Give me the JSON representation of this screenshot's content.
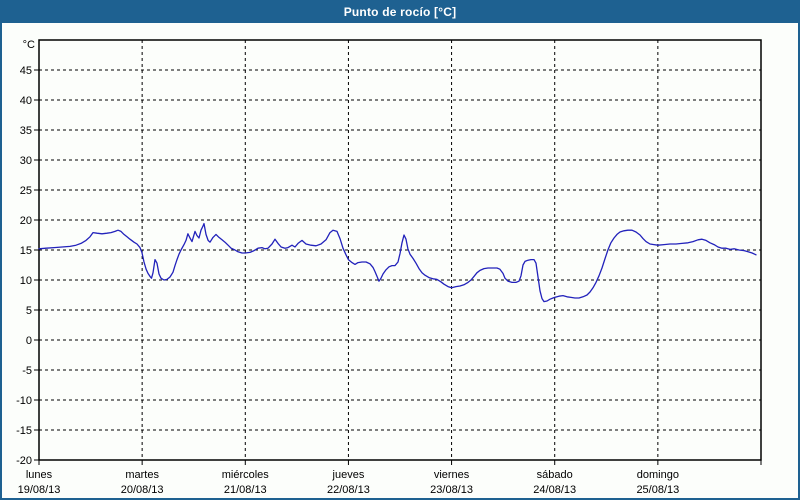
{
  "window": {
    "title": "Punto de rocío [°C]"
  },
  "colors": {
    "titlebar_bg": "#1e6191",
    "window_border": "#1e6191",
    "background": "#fcfefb",
    "line": "#2222bb",
    "grid": "#000000",
    "axis": "#000000",
    "text": "#000000",
    "title_text": "#ffffff"
  },
  "chart_data": {
    "type": "line",
    "title": "Punto de rocío [°C]",
    "unit_label": "°C",
    "ylabel": "°C",
    "xlabel": "",
    "ylim": [
      -20,
      50
    ],
    "yticks": [
      45,
      40,
      35,
      30,
      25,
      20,
      15,
      10,
      5,
      0,
      -5,
      -10,
      -15,
      -20
    ],
    "grid": "dashed",
    "legend": "none",
    "x_axis_days": [
      {
        "name": "lunes",
        "date": "19/08/13"
      },
      {
        "name": "martes",
        "date": "20/08/13"
      },
      {
        "name": "miércoles",
        "date": "21/08/13"
      },
      {
        "name": "jueves",
        "date": "22/08/13"
      },
      {
        "name": "viernes",
        "date": "23/08/13"
      },
      {
        "name": "sábado",
        "date": "24/08/13"
      },
      {
        "name": "domingo",
        "date": "25/08/13"
      }
    ],
    "series": [
      {
        "name": "punto de rocío",
        "color": "#2222bb",
        "x_unit": "days from 19/08/13 00:00",
        "y_unit": "°C",
        "points": [
          [
            0.0,
            15.2
          ],
          [
            0.068,
            15.3
          ],
          [
            0.145,
            15.4
          ],
          [
            0.223,
            15.5
          ],
          [
            0.301,
            15.6
          ],
          [
            0.359,
            15.8
          ],
          [
            0.407,
            16.1
          ],
          [
            0.456,
            16.6
          ],
          [
            0.494,
            17.2
          ],
          [
            0.524,
            17.9
          ],
          [
            0.562,
            17.8
          ],
          [
            0.611,
            17.7
          ],
          [
            0.659,
            17.8
          ],
          [
            0.698,
            17.9
          ],
          [
            0.737,
            18.1
          ],
          [
            0.766,
            18.3
          ],
          [
            0.795,
            18.1
          ],
          [
            0.824,
            17.6
          ],
          [
            0.853,
            17.2
          ],
          [
            0.882,
            16.8
          ],
          [
            0.921,
            16.3
          ],
          [
            0.95,
            16.0
          ],
          [
            0.979,
            15.4
          ],
          [
            0.998,
            14.6
          ],
          [
            1.018,
            13.0
          ],
          [
            1.038,
            11.8
          ],
          [
            1.057,
            11.1
          ],
          [
            1.076,
            10.6
          ],
          [
            1.091,
            10.3
          ],
          [
            1.105,
            11.2
          ],
          [
            1.125,
            13.4
          ],
          [
            1.144,
            12.8
          ],
          [
            1.163,
            11.0
          ],
          [
            1.183,
            10.3
          ],
          [
            1.212,
            10.0
          ],
          [
            1.241,
            10.1
          ],
          [
            1.27,
            10.5
          ],
          [
            1.299,
            11.3
          ],
          [
            1.319,
            12.4
          ],
          [
            1.338,
            13.4
          ],
          [
            1.357,
            14.3
          ],
          [
            1.377,
            15.0
          ],
          [
            1.406,
            15.9
          ],
          [
            1.425,
            16.6
          ],
          [
            1.444,
            17.7
          ],
          [
            1.464,
            17.0
          ],
          [
            1.483,
            16.4
          ],
          [
            1.512,
            18.1
          ],
          [
            1.532,
            17.4
          ],
          [
            1.551,
            17.0
          ],
          [
            1.571,
            18.3
          ],
          [
            1.59,
            19.0
          ],
          [
            1.6,
            19.4
          ],
          [
            1.619,
            17.6
          ],
          [
            1.639,
            16.6
          ],
          [
            1.658,
            16.3
          ],
          [
            1.687,
            17.1
          ],
          [
            1.716,
            17.6
          ],
          [
            1.745,
            17.1
          ],
          [
            1.774,
            16.7
          ],
          [
            1.803,
            16.3
          ],
          [
            1.833,
            15.8
          ],
          [
            1.862,
            15.3
          ],
          [
            1.9,
            15.0
          ],
          [
            1.929,
            14.7
          ],
          [
            1.968,
            14.5
          ],
          [
            2.0,
            14.5
          ],
          [
            2.046,
            14.6
          ],
          [
            2.085,
            14.9
          ],
          [
            2.123,
            15.3
          ],
          [
            2.162,
            15.4
          ],
          [
            2.191,
            15.2
          ],
          [
            2.22,
            15.3
          ],
          [
            2.259,
            16.0
          ],
          [
            2.288,
            16.8
          ],
          [
            2.317,
            16.1
          ],
          [
            2.347,
            15.5
          ],
          [
            2.385,
            15.3
          ],
          [
            2.414,
            15.4
          ],
          [
            2.453,
            15.8
          ],
          [
            2.482,
            15.5
          ],
          [
            2.511,
            16.1
          ],
          [
            2.55,
            16.6
          ],
          [
            2.589,
            16.0
          ],
          [
            2.637,
            15.8
          ],
          [
            2.686,
            15.7
          ],
          [
            2.734,
            16.0
          ],
          [
            2.783,
            16.7
          ],
          [
            2.821,
            17.9
          ],
          [
            2.85,
            18.3
          ],
          [
            2.889,
            18.1
          ],
          [
            2.918,
            16.9
          ],
          [
            2.947,
            15.3
          ],
          [
            2.976,
            14.2
          ],
          [
            3.0,
            13.4
          ],
          [
            3.035,
            12.9
          ],
          [
            3.064,
            12.6
          ],
          [
            3.093,
            12.9
          ],
          [
            3.132,
            13.0
          ],
          [
            3.171,
            13.0
          ],
          [
            3.209,
            12.7
          ],
          [
            3.238,
            12.1
          ],
          [
            3.258,
            11.4
          ],
          [
            3.277,
            10.6
          ],
          [
            3.296,
            9.8
          ],
          [
            3.316,
            10.3
          ],
          [
            3.335,
            11.0
          ],
          [
            3.364,
            11.7
          ],
          [
            3.393,
            12.2
          ],
          [
            3.422,
            12.4
          ],
          [
            3.452,
            12.4
          ],
          [
            3.481,
            13.0
          ],
          [
            3.5,
            14.4
          ],
          [
            3.519,
            16.2
          ],
          [
            3.539,
            17.5
          ],
          [
            3.558,
            16.8
          ],
          [
            3.577,
            15.2
          ],
          [
            3.597,
            14.3
          ],
          [
            3.626,
            13.6
          ],
          [
            3.655,
            12.8
          ],
          [
            3.684,
            11.9
          ],
          [
            3.713,
            11.2
          ],
          [
            3.742,
            10.8
          ],
          [
            3.781,
            10.4
          ],
          [
            3.82,
            10.2
          ],
          [
            3.859,
            10.1
          ],
          [
            3.897,
            9.7
          ],
          [
            3.927,
            9.3
          ],
          [
            3.965,
            8.9
          ],
          [
            4.0,
            8.7
          ],
          [
            4.043,
            8.9
          ],
          [
            4.082,
            9.0
          ],
          [
            4.12,
            9.2
          ],
          [
            4.159,
            9.6
          ],
          [
            4.188,
            10.0
          ],
          [
            4.217,
            10.6
          ],
          [
            4.246,
            11.2
          ],
          [
            4.276,
            11.6
          ],
          [
            4.314,
            11.9
          ],
          [
            4.353,
            12.0
          ],
          [
            4.402,
            12.0
          ],
          [
            4.44,
            12.0
          ],
          [
            4.469,
            11.8
          ],
          [
            4.499,
            11.1
          ],
          [
            4.518,
            10.3
          ],
          [
            4.547,
            9.8
          ],
          [
            4.586,
            9.6
          ],
          [
            4.625,
            9.6
          ],
          [
            4.654,
            9.8
          ],
          [
            4.673,
            10.7
          ],
          [
            4.693,
            12.5
          ],
          [
            4.712,
            13.1
          ],
          [
            4.741,
            13.3
          ],
          [
            4.77,
            13.4
          ],
          [
            4.799,
            13.4
          ],
          [
            4.819,
            12.8
          ],
          [
            4.838,
            10.5
          ],
          [
            4.857,
            8.2
          ],
          [
            4.877,
            6.9
          ],
          [
            4.896,
            6.4
          ],
          [
            4.925,
            6.5
          ],
          [
            4.954,
            6.8
          ],
          [
            4.983,
            7.0
          ],
          [
            5.0,
            7.1
          ],
          [
            5.041,
            7.3
          ],
          [
            5.08,
            7.4
          ],
          [
            5.119,
            7.2
          ],
          [
            5.158,
            7.1
          ],
          [
            5.196,
            7.0
          ],
          [
            5.235,
            7.0
          ],
          [
            5.274,
            7.2
          ],
          [
            5.313,
            7.5
          ],
          [
            5.342,
            8.0
          ],
          [
            5.371,
            8.7
          ],
          [
            5.4,
            9.6
          ],
          [
            5.429,
            10.7
          ],
          [
            5.458,
            12.0
          ],
          [
            5.487,
            13.5
          ],
          [
            5.516,
            15.0
          ],
          [
            5.545,
            16.2
          ],
          [
            5.575,
            17.0
          ],
          [
            5.604,
            17.6
          ],
          [
            5.633,
            18.0
          ],
          [
            5.671,
            18.2
          ],
          [
            5.71,
            18.3
          ],
          [
            5.749,
            18.3
          ],
          [
            5.788,
            18.0
          ],
          [
            5.827,
            17.5
          ],
          [
            5.856,
            16.9
          ],
          [
            5.885,
            16.4
          ],
          [
            5.924,
            16.0
          ],
          [
            5.963,
            15.9
          ],
          [
            6.0,
            15.8
          ],
          [
            6.06,
            15.9
          ],
          [
            6.118,
            16.0
          ],
          [
            6.176,
            16.0
          ],
          [
            6.234,
            16.1
          ],
          [
            6.292,
            16.2
          ],
          [
            6.341,
            16.4
          ],
          [
            6.389,
            16.7
          ],
          [
            6.428,
            16.8
          ],
          [
            6.467,
            16.6
          ],
          [
            6.506,
            16.2
          ],
          [
            6.545,
            15.9
          ],
          [
            6.583,
            15.5
          ],
          [
            6.622,
            15.3
          ],
          [
            6.661,
            15.3
          ],
          [
            6.7,
            15.1
          ],
          [
            6.739,
            15.2
          ],
          [
            6.787,
            15.0
          ],
          [
            6.836,
            14.9
          ],
          [
            6.875,
            14.7
          ],
          [
            6.914,
            14.5
          ],
          [
            6.952,
            14.2
          ]
        ]
      }
    ]
  }
}
